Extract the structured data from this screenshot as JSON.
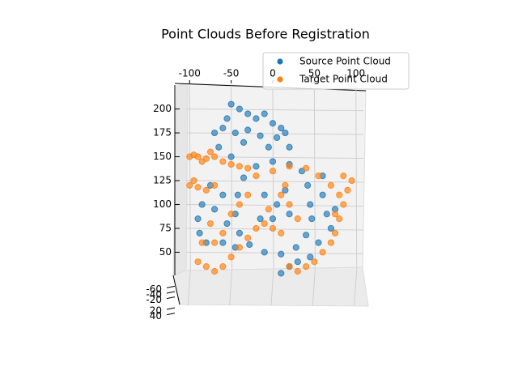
{
  "chart_data": {
    "type": "scatter3d",
    "title": "Point Clouds Before Registration",
    "xlim": [
      -110,
      110
    ],
    "xticks": [
      -100,
      -50,
      0,
      50,
      100
    ],
    "ylim": [
      -70,
      50
    ],
    "yticks": [
      -60,
      -40,
      -20,
      20,
      40
    ],
    "zlim": [
      30,
      220
    ],
    "zticks": [
      50,
      75,
      100,
      125,
      150,
      175,
      200
    ],
    "legend": "upper right",
    "series": [
      {
        "name": "Source Point Cloud",
        "color": "#1f77b4",
        "x": [
          -50,
          -40,
          -30,
          -20,
          -10,
          0,
          10,
          -55,
          -60,
          -45,
          -30,
          -15,
          5,
          15,
          -70,
          -35,
          -5,
          20,
          -65,
          -50,
          45,
          42,
          35,
          20,
          0,
          -20,
          -35,
          -42,
          -45,
          -40,
          -28,
          -10,
          10,
          28,
          40,
          47,
          60,
          65,
          70,
          55,
          45,
          30,
          20,
          10,
          60,
          75,
          -90,
          -88,
          -80,
          -70,
          -60,
          -75,
          -85,
          -55,
          -60,
          -45,
          5,
          15,
          -10,
          0,
          20,
          -15
        ],
        "z": [
          205,
          200,
          195,
          190,
          195,
          185,
          180,
          190,
          180,
          175,
          178,
          172,
          170,
          175,
          175,
          165,
          160,
          160,
          160,
          150,
          100,
          120,
          135,
          142,
          145,
          140,
          128,
          110,
          90,
          70,
          58,
          50,
          48,
          55,
          68,
          85,
          110,
          90,
          75,
          60,
          45,
          40,
          35,
          28,
          130,
          95,
          85,
          70,
          60,
          95,
          110,
          120,
          100,
          80,
          60,
          55,
          100,
          115,
          110,
          85,
          90,
          85
        ]
      },
      {
        "name": "Target Point Cloud",
        "color": "#ff7f0e",
        "x": [
          -100,
          -90,
          -80,
          -70,
          -60,
          -50,
          -40,
          -30,
          -95,
          -85,
          -75,
          -100,
          -95,
          -90,
          -80,
          -70,
          -20,
          0,
          20,
          40,
          55,
          70,
          80,
          85,
          90,
          95,
          85,
          80,
          75,
          70,
          60,
          50,
          40,
          30,
          20,
          75,
          -90,
          -80,
          -70,
          -60,
          -50,
          -40,
          -30,
          -20,
          -10,
          0,
          10,
          -60,
          -50,
          -40,
          -30,
          -70,
          -85,
          -75,
          10,
          20,
          -5,
          30,
          15
        ],
        "z": [
          150,
          150,
          148,
          150,
          145,
          142,
          140,
          138,
          152,
          145,
          155,
          120,
          125,
          118,
          115,
          120,
          130,
          135,
          140,
          138,
          130,
          120,
          110,
          100,
          115,
          125,
          130,
          85,
          70,
          60,
          50,
          40,
          35,
          30,
          35,
          90,
          40,
          35,
          30,
          35,
          45,
          55,
          65,
          75,
          80,
          75,
          70,
          70,
          90,
          100,
          110,
          60,
          60,
          80,
          110,
          100,
          95,
          85,
          120
        ]
      }
    ]
  }
}
